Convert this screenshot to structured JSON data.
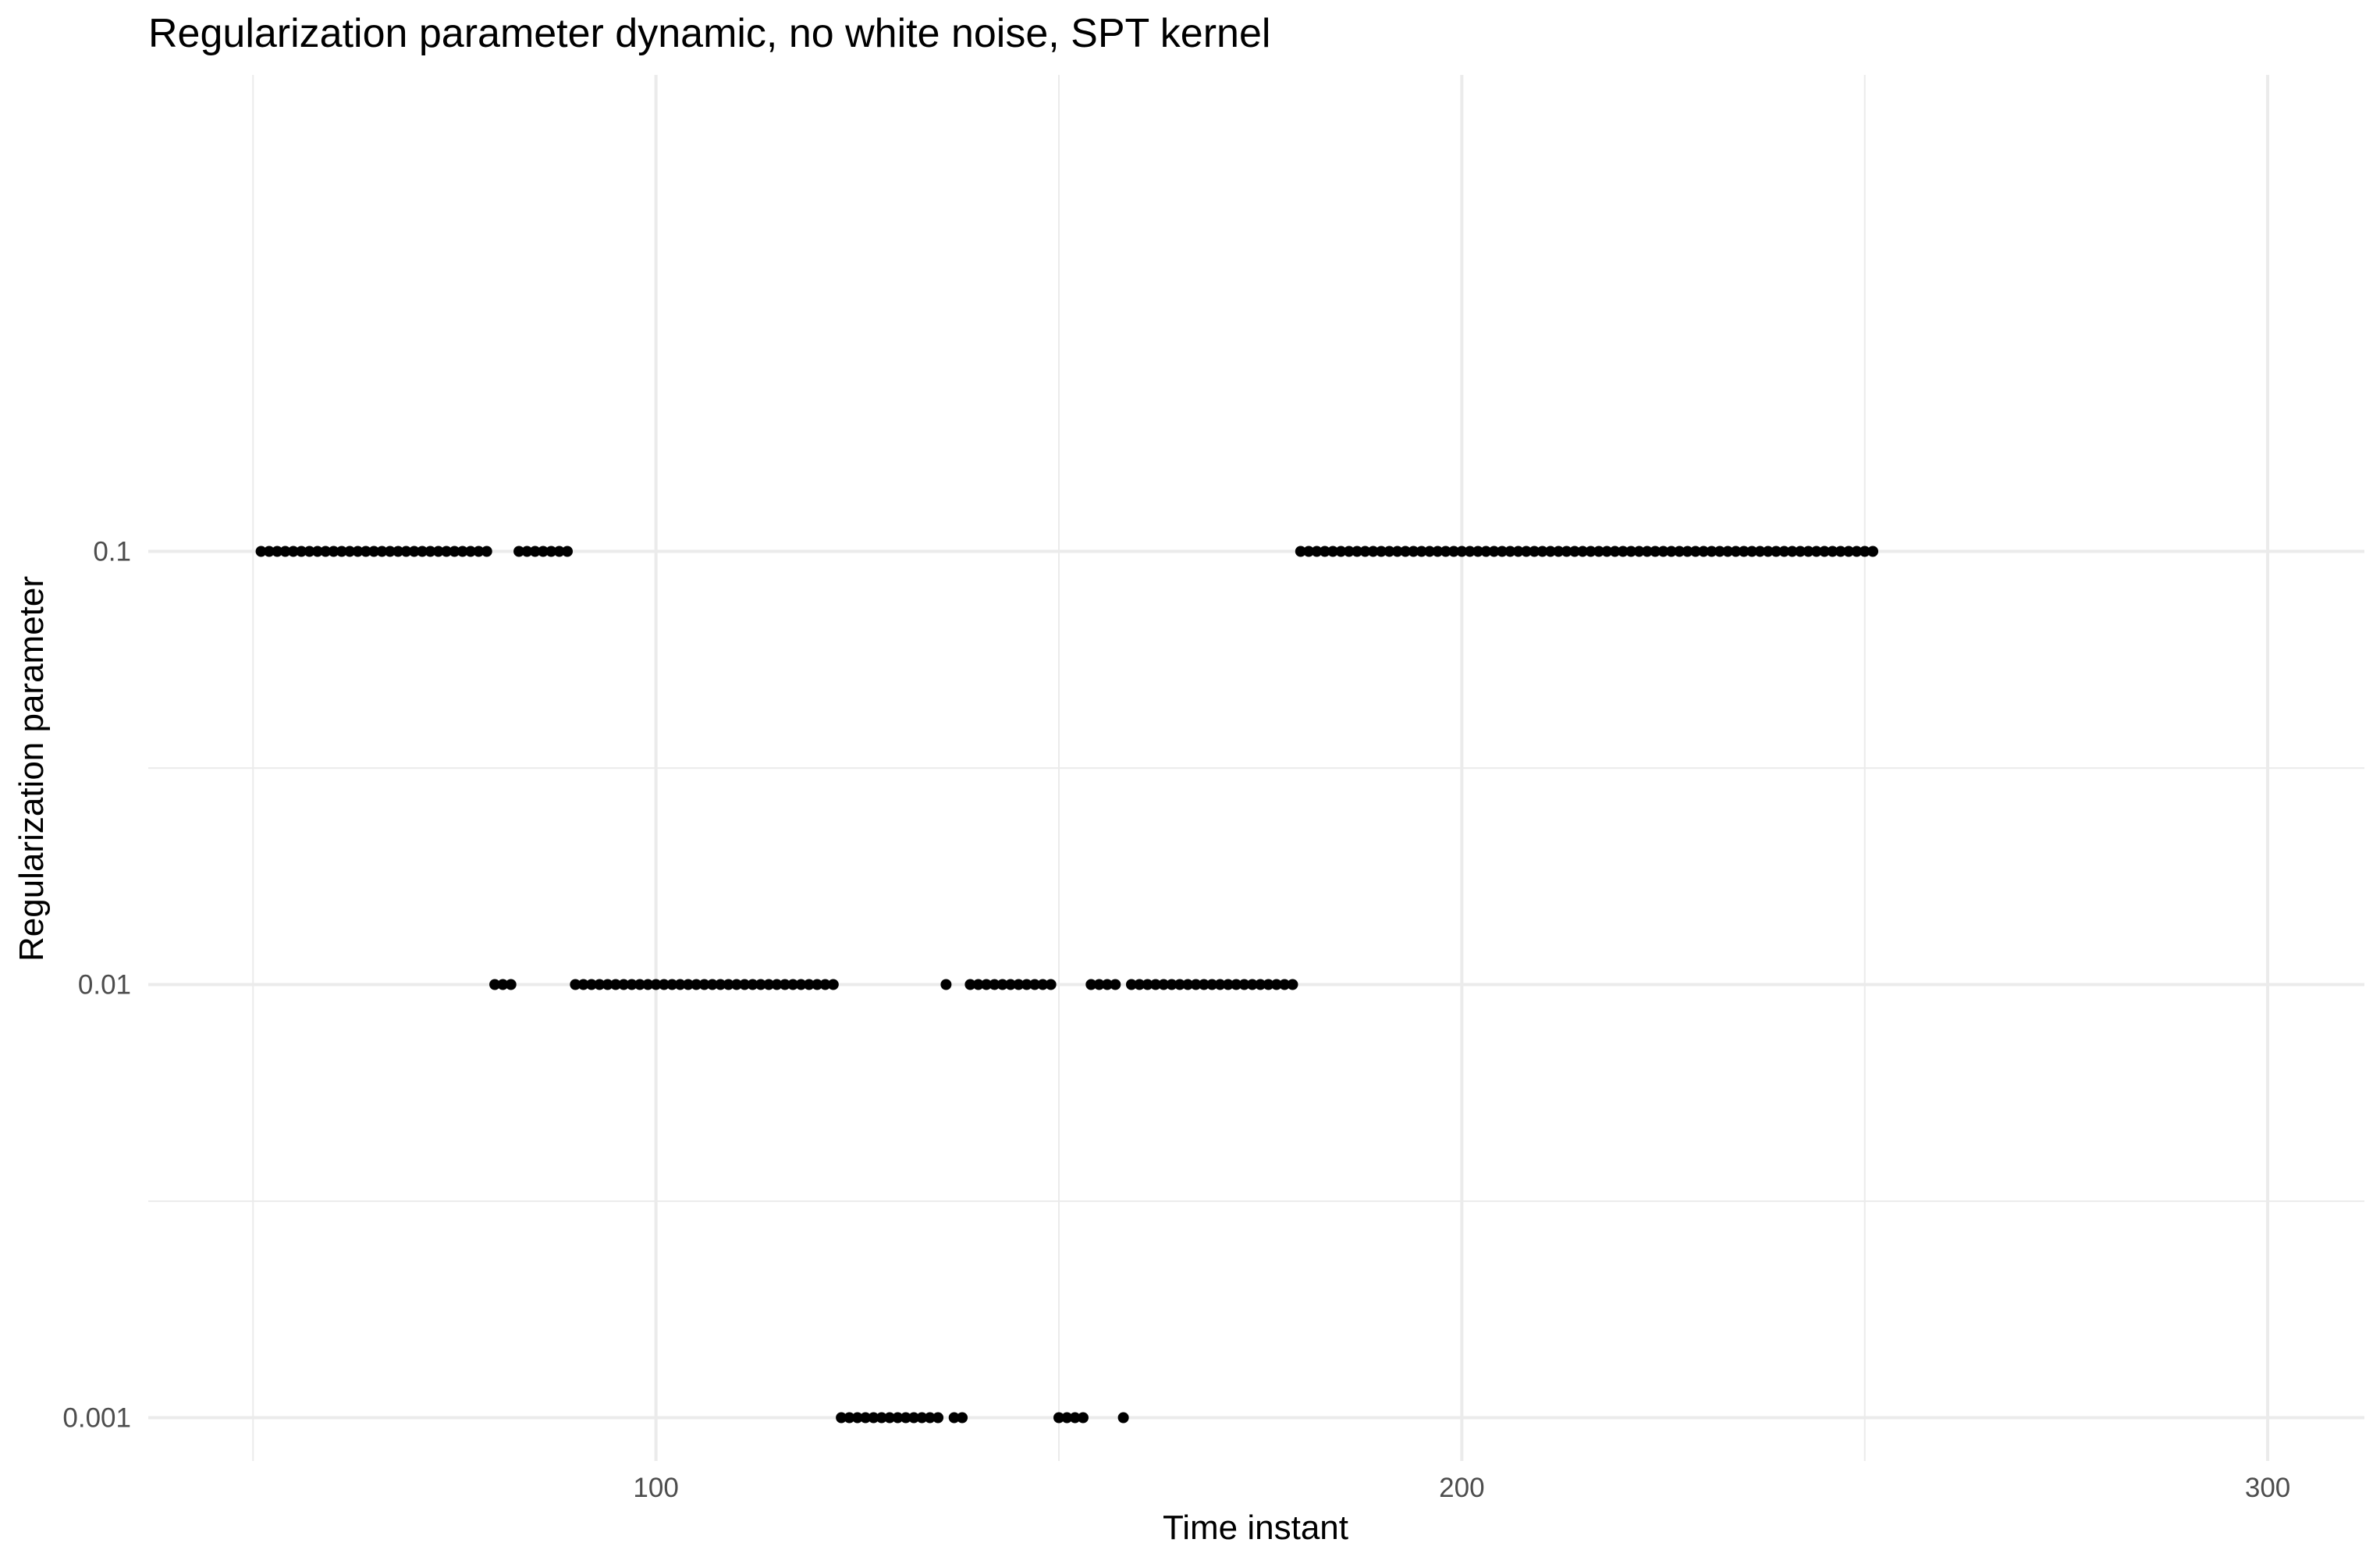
{
  "chart_data": {
    "type": "scatter",
    "title": "Regularization parameter dynamic, no white noise, SPT kernel",
    "xlabel": "Time instant",
    "ylabel": "Regularization parameter",
    "xlim": [
      37,
      312
    ],
    "ylim_log10": [
      -3.1,
      0.1
    ],
    "y_scale": "log10",
    "x_ticks": [
      100,
      200,
      300
    ],
    "x_tick_labels": [
      "100",
      "200",
      "300"
    ],
    "x_minor_ticks": [
      50,
      150,
      250
    ],
    "y_ticks": [
      0.001,
      0.01,
      0.1
    ],
    "y_tick_labels": [
      "0.001",
      "0.01",
      "0.1"
    ],
    "y_minor_ticks": [
      0.00316,
      0.0316
    ],
    "grid": true,
    "legend": "none",
    "marker_color": "#000000",
    "series": [
      {
        "points": [
          {
            "x_range": [
              51,
              79
            ],
            "y": 0.1
          },
          {
            "x_range": [
              83,
              89
            ],
            "y": 0.1
          },
          {
            "x_range": [
              80,
              82
            ],
            "y": 0.01
          },
          {
            "x_range": [
              90,
              122
            ],
            "y": 0.01
          },
          {
            "x": 136,
            "y": 0.01
          },
          {
            "x_range": [
              139,
              149
            ],
            "y": 0.01
          },
          {
            "x_range": [
              154,
              157
            ],
            "y": 0.01
          },
          {
            "x_range": [
              159,
              179
            ],
            "y": 0.01
          },
          {
            "x_range": [
              123,
              135
            ],
            "y": 0.001
          },
          {
            "x_range": [
              137,
              138
            ],
            "y": 0.001
          },
          {
            "x_range": [
              150,
              153
            ],
            "y": 0.001
          },
          {
            "x": 158,
            "y": 0.001
          },
          {
            "x_range": [
              180,
              251
            ],
            "y": 0.1
          }
        ]
      }
    ]
  }
}
